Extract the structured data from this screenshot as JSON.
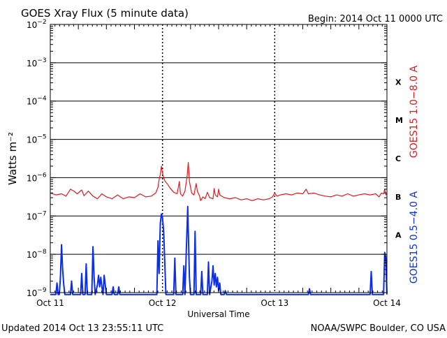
{
  "header": {
    "title": "GOES Xray Flux (5 minute data)",
    "begin": "Begin:  2014 Oct 11 0000 UTC"
  },
  "footer": {
    "updated": "Updated 2014 Oct 13 23:55:11 UTC",
    "credit": "NOAA/SWPC Boulder, CO USA"
  },
  "colors": {
    "long_channel": "#e8161b",
    "short_channel": "#0a2df0",
    "grid": "#000000"
  },
  "chart_data": {
    "type": "line",
    "title": "GOES Xray Flux (5 minute data)",
    "xlabel": "Universal Time",
    "ylabel": "Watts m⁻²",
    "y_scale": "log",
    "ylim": [
      1e-09,
      0.01
    ],
    "xlim": [
      0,
      3
    ],
    "x_unit": "days since begin",
    "x_ticks": [
      {
        "value": 0,
        "label": "Oct 11"
      },
      {
        "value": 1,
        "label": "Oct 12"
      },
      {
        "value": 2,
        "label": "Oct 13"
      },
      {
        "value": 3,
        "label": "Oct 14"
      }
    ],
    "y_ticks": [
      {
        "exp": -9,
        "label": "10",
        "sup": "−9"
      },
      {
        "exp": -8,
        "label": "10",
        "sup": "−8"
      },
      {
        "exp": -7,
        "label": "10",
        "sup": "−7"
      },
      {
        "exp": -6,
        "label": "10",
        "sup": "−6"
      },
      {
        "exp": -5,
        "label": "10",
        "sup": "−5"
      },
      {
        "exp": -4,
        "label": "10",
        "sup": "−4"
      },
      {
        "exp": -3,
        "label": "10",
        "sup": "−3"
      },
      {
        "exp": -2,
        "label": "10",
        "sup": "−2"
      }
    ],
    "flare_classes": [
      {
        "label": "A",
        "exp": -7.5
      },
      {
        "label": "B",
        "exp": -6.5
      },
      {
        "label": "C",
        "exp": -5.5
      },
      {
        "label": "M",
        "exp": -4.5
      },
      {
        "label": "X",
        "exp": -3.5
      }
    ],
    "series": [
      {
        "name": "GOES15 1.0−8.0 A",
        "color": "#e8161b",
        "points": [
          [
            0.0,
            -6.4
          ],
          [
            0.05,
            -6.45
          ],
          [
            0.1,
            -6.42
          ],
          [
            0.14,
            -6.48
          ],
          [
            0.18,
            -6.3
          ],
          [
            0.21,
            -6.35
          ],
          [
            0.24,
            -6.42
          ],
          [
            0.28,
            -6.32
          ],
          [
            0.3,
            -6.47
          ],
          [
            0.34,
            -6.35
          ],
          [
            0.38,
            -6.48
          ],
          [
            0.42,
            -6.55
          ],
          [
            0.46,
            -6.42
          ],
          [
            0.5,
            -6.5
          ],
          [
            0.55,
            -6.55
          ],
          [
            0.6,
            -6.45
          ],
          [
            0.65,
            -6.55
          ],
          [
            0.7,
            -6.5
          ],
          [
            0.75,
            -6.52
          ],
          [
            0.8,
            -6.42
          ],
          [
            0.85,
            -6.5
          ],
          [
            0.9,
            -6.48
          ],
          [
            0.94,
            -6.4
          ],
          [
            0.96,
            -6.25
          ],
          [
            0.97,
            -6.05
          ],
          [
            0.98,
            -5.92
          ],
          [
            0.99,
            -5.7
          ],
          [
            1.0,
            -5.88
          ],
          [
            1.01,
            -6.0
          ],
          [
            1.02,
            -6.08
          ],
          [
            1.04,
            -6.15
          ],
          [
            1.07,
            -6.28
          ],
          [
            1.1,
            -6.38
          ],
          [
            1.13,
            -6.42
          ],
          [
            1.15,
            -6.1
          ],
          [
            1.16,
            -6.42
          ],
          [
            1.18,
            -6.48
          ],
          [
            1.2,
            -6.35
          ],
          [
            1.22,
            -5.95
          ],
          [
            1.23,
            -5.6
          ],
          [
            1.24,
            -6.1
          ],
          [
            1.26,
            -6.4
          ],
          [
            1.28,
            -6.45
          ],
          [
            1.3,
            -6.15
          ],
          [
            1.31,
            -6.35
          ],
          [
            1.33,
            -6.48
          ],
          [
            1.34,
            -6.6
          ],
          [
            1.36,
            -6.5
          ],
          [
            1.38,
            -6.55
          ],
          [
            1.4,
            -6.38
          ],
          [
            1.42,
            -6.52
          ],
          [
            1.45,
            -6.55
          ],
          [
            1.46,
            -6.28
          ],
          [
            1.47,
            -6.45
          ],
          [
            1.49,
            -6.5
          ],
          [
            1.5,
            -6.3
          ],
          [
            1.51,
            -6.45
          ],
          [
            1.55,
            -6.52
          ],
          [
            1.6,
            -6.55
          ],
          [
            1.65,
            -6.52
          ],
          [
            1.7,
            -6.58
          ],
          [
            1.75,
            -6.55
          ],
          [
            1.8,
            -6.6
          ],
          [
            1.85,
            -6.55
          ],
          [
            1.9,
            -6.58
          ],
          [
            1.95,
            -6.55
          ],
          [
            1.98,
            -6.5
          ],
          [
            2.0,
            -6.4
          ],
          [
            2.02,
            -6.48
          ],
          [
            2.05,
            -6.45
          ],
          [
            2.1,
            -6.42
          ],
          [
            2.15,
            -6.45
          ],
          [
            2.2,
            -6.4
          ],
          [
            2.25,
            -6.42
          ],
          [
            2.28,
            -6.3
          ],
          [
            2.3,
            -6.42
          ],
          [
            2.35,
            -6.4
          ],
          [
            2.4,
            -6.45
          ],
          [
            2.45,
            -6.48
          ],
          [
            2.5,
            -6.5
          ],
          [
            2.55,
            -6.45
          ],
          [
            2.6,
            -6.48
          ],
          [
            2.65,
            -6.42
          ],
          [
            2.7,
            -6.48
          ],
          [
            2.75,
            -6.45
          ],
          [
            2.8,
            -6.42
          ],
          [
            2.85,
            -6.45
          ],
          [
            2.9,
            -6.42
          ],
          [
            2.93,
            -6.5
          ],
          [
            2.95,
            -6.4
          ],
          [
            2.97,
            -6.42
          ],
          [
            2.98,
            -6.3
          ],
          [
            2.99,
            -6.45
          ],
          [
            3.0,
            -6.42
          ]
        ]
      },
      {
        "name": "GOES15 0.5−4.0 A",
        "color": "#0a2df0",
        "points": [
          [
            0.0,
            -9.05
          ],
          [
            0.05,
            -9.05
          ],
          [
            0.06,
            -8.75
          ],
          [
            0.07,
            -9.05
          ],
          [
            0.08,
            -9.05
          ],
          [
            0.09,
            -8.6
          ],
          [
            0.1,
            -7.75
          ],
          [
            0.11,
            -8.4
          ],
          [
            0.12,
            -8.8
          ],
          [
            0.13,
            -9.05
          ],
          [
            0.18,
            -9.05
          ],
          [
            0.19,
            -8.7
          ],
          [
            0.2,
            -9.05
          ],
          [
            0.27,
            -9.05
          ],
          [
            0.28,
            -8.5
          ],
          [
            0.29,
            -9.05
          ],
          [
            0.31,
            -9.05
          ],
          [
            0.32,
            -8.25
          ],
          [
            0.33,
            -9.05
          ],
          [
            0.37,
            -9.05
          ],
          [
            0.38,
            -7.8
          ],
          [
            0.39,
            -8.6
          ],
          [
            0.4,
            -9.05
          ],
          [
            0.42,
            -8.8
          ],
          [
            0.43,
            -8.55
          ],
          [
            0.44,
            -8.85
          ],
          [
            0.45,
            -8.6
          ],
          [
            0.46,
            -8.85
          ],
          [
            0.47,
            -9.05
          ],
          [
            0.48,
            -8.55
          ],
          [
            0.49,
            -8.8
          ],
          [
            0.5,
            -9.05
          ],
          [
            0.55,
            -9.05
          ],
          [
            0.56,
            -8.85
          ],
          [
            0.57,
            -9.05
          ],
          [
            0.6,
            -9.05
          ],
          [
            0.61,
            -8.85
          ],
          [
            0.62,
            -9.05
          ],
          [
            0.95,
            -9.05
          ],
          [
            0.96,
            -7.65
          ],
          [
            0.97,
            -8.5
          ],
          [
            0.98,
            -7.2
          ],
          [
            0.99,
            -6.95
          ],
          [
            1.0,
            -7.05
          ],
          [
            1.01,
            -7.4
          ],
          [
            1.02,
            -8.2
          ],
          [
            1.03,
            -9.05
          ],
          [
            1.1,
            -9.05
          ],
          [
            1.11,
            -8.1
          ],
          [
            1.12,
            -9.05
          ],
          [
            1.18,
            -9.05
          ],
          [
            1.19,
            -8.3
          ],
          [
            1.2,
            -9.05
          ],
          [
            1.21,
            -8.1
          ],
          [
            1.22,
            -7.2
          ],
          [
            1.225,
            -6.75
          ],
          [
            1.23,
            -7.4
          ],
          [
            1.24,
            -8.6
          ],
          [
            1.25,
            -9.05
          ],
          [
            1.28,
            -9.05
          ],
          [
            1.29,
            -7.4
          ],
          [
            1.3,
            -9.05
          ],
          [
            1.34,
            -9.05
          ],
          [
            1.35,
            -8.45
          ],
          [
            1.36,
            -9.05
          ],
          [
            1.4,
            -9.05
          ],
          [
            1.41,
            -8.2
          ],
          [
            1.42,
            -9.05
          ],
          [
            1.44,
            -8.7
          ],
          [
            1.45,
            -8.3
          ],
          [
            1.46,
            -8.8
          ],
          [
            1.47,
            -8.5
          ],
          [
            1.48,
            -8.85
          ],
          [
            1.49,
            -8.6
          ],
          [
            1.5,
            -8.95
          ],
          [
            1.51,
            -8.75
          ],
          [
            1.52,
            -9.05
          ],
          [
            1.55,
            -9.05
          ],
          [
            1.56,
            -8.95
          ],
          [
            1.57,
            -9.05
          ],
          [
            2.3,
            -9.05
          ],
          [
            2.31,
            -8.9
          ],
          [
            2.32,
            -9.05
          ],
          [
            2.85,
            -9.05
          ],
          [
            2.86,
            -8.45
          ],
          [
            2.87,
            -9.05
          ],
          [
            2.97,
            -9.05
          ],
          [
            2.98,
            -7.95
          ],
          [
            2.99,
            -8.1
          ],
          [
            3.0,
            -9.05
          ]
        ]
      }
    ]
  }
}
